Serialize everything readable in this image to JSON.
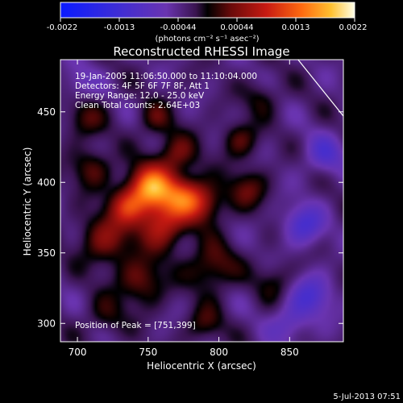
{
  "chart_data": {
    "type": "heatmap",
    "title": "Reconstructed RHESSI Image",
    "xlabel": "Heliocentric X (arcsec)",
    "ylabel": "Heliocentric Y (arcsec)",
    "xlim": [
      688,
      888
    ],
    "ylim": [
      287,
      487
    ],
    "xticks": [
      700,
      750,
      800,
      850
    ],
    "yticks": [
      300,
      350,
      400,
      450
    ],
    "colorbar": {
      "ticks": [
        "-0.0022",
        "-0.0013",
        "-0.00044",
        "0.00044",
        "0.0013",
        "0.0022"
      ],
      "min": -0.0022,
      "max": 0.0022,
      "unit_label": "(photons cm⁻² s⁻¹ asec⁻²)"
    },
    "annotations": [
      "19-Jan-2005 11:06:50.000 to 11:10:04.000",
      "Detectors: 4F 5F 6F 7F 8F, Att 1",
      "Energy Range: 12.0 - 25.0 keV",
      "Clean     Total counts: 2.64E+03"
    ],
    "peak_label": "Position of Peak = [751,399]",
    "peak": [
      751,
      399
    ],
    "limb_line": [
      [
        856,
        487
      ],
      [
        888,
        447
      ]
    ],
    "sources": [
      {
        "x": 752,
        "y": 396,
        "sigma": 11,
        "amp": 0.0019
      },
      {
        "x": 735,
        "y": 383,
        "sigma": 9,
        "amp": 0.001
      },
      {
        "x": 775,
        "y": 390,
        "sigma": 10,
        "amp": 0.0012
      },
      {
        "x": 760,
        "y": 370,
        "sigma": 12,
        "amp": 0.0011
      },
      {
        "x": 790,
        "y": 385,
        "sigma": 10,
        "amp": 0.0008
      },
      {
        "x": 720,
        "y": 360,
        "sigma": 13,
        "amp": 0.0008
      },
      {
        "x": 795,
        "y": 340,
        "sigma": 12,
        "amp": 0.0007
      },
      {
        "x": 745,
        "y": 330,
        "sigma": 12,
        "amp": 0.0007
      },
      {
        "x": 770,
        "y": 420,
        "sigma": 10,
        "amp": 0.0007
      },
      {
        "x": 710,
        "y": 410,
        "sigma": 10,
        "amp": 0.0006
      },
      {
        "x": 820,
        "y": 395,
        "sigma": 10,
        "amp": 0.0006
      },
      {
        "x": 815,
        "y": 430,
        "sigma": 9,
        "amp": 0.0006
      },
      {
        "x": 755,
        "y": 445,
        "sigma": 9,
        "amp": 0.0005
      },
      {
        "x": 705,
        "y": 445,
        "sigma": 10,
        "amp": 0.0005
      },
      {
        "x": 790,
        "y": 300,
        "sigma": 9,
        "amp": 0.0005
      },
      {
        "x": 720,
        "y": 305,
        "sigma": 10,
        "amp": 0.0004
      },
      {
        "x": 840,
        "y": 330,
        "sigma": 10,
        "amp": 0.0004
      },
      {
        "x": 830,
        "y": 460,
        "sigma": 9,
        "amp": 0.0004
      },
      {
        "x": 860,
        "y": 370,
        "sigma": 10,
        "amp": -0.0008
      },
      {
        "x": 865,
        "y": 320,
        "sigma": 11,
        "amp": -0.0007
      },
      {
        "x": 875,
        "y": 420,
        "sigma": 10,
        "amp": -0.0006
      },
      {
        "x": 700,
        "y": 470,
        "sigma": 9,
        "amp": -0.0004
      },
      {
        "x": 850,
        "y": 300,
        "sigma": 10,
        "amp": -0.0005
      }
    ]
  },
  "footer": {
    "timestamp": "5-Jul-2013 07:51"
  },
  "colors": {
    "background": "#000000",
    "axes": "#ffffff"
  }
}
